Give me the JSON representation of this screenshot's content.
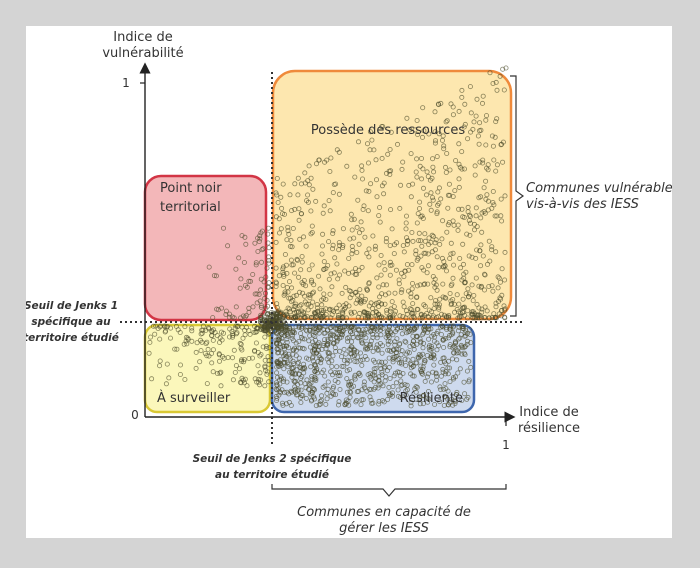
{
  "axes": {
    "y_title_line1": "Indice de",
    "y_title_line2": "vulnérabilité",
    "y_max_tick": "1",
    "origin_tick": "0",
    "x_title_line1": "Indice de",
    "x_title_line2": "résilience",
    "x_max_tick": "1"
  },
  "zones": {
    "resources": {
      "label": "Possède des ressources",
      "color": "#fbd36e",
      "border": "#ef8a3b"
    },
    "black_spot": {
      "label_line1": "Point noir",
      "label_line2": "territorial",
      "color": "#e97b80",
      "border": "#d23545"
    },
    "watch": {
      "label": "À surveiller",
      "color": "#f8f083",
      "border": "#d9c834"
    },
    "resilient": {
      "label": "Résiliente",
      "color": "#a6bce0",
      "border": "#3e66ad"
    }
  },
  "thresholds": {
    "jenks1_line1": "Seuil de Jenks 1",
    "jenks1_line2": "spécifique au",
    "jenks1_line3": "territoire étudié",
    "jenks2_line1": "Seuil de Jenks 2 spécifique",
    "jenks2_line2": "au territoire étudié"
  },
  "braces": {
    "vulnerable_line1": "Communes vulnérables",
    "vulnerable_line2": "vis-à-vis des IESS",
    "capable_line1": "Communes en capacité de",
    "capable_line2": "gérer les IESS"
  },
  "colors": {
    "background": "#d4d4d4",
    "panel": "#ffffff",
    "axis": "#333333",
    "points": "#4a4a2a"
  }
}
